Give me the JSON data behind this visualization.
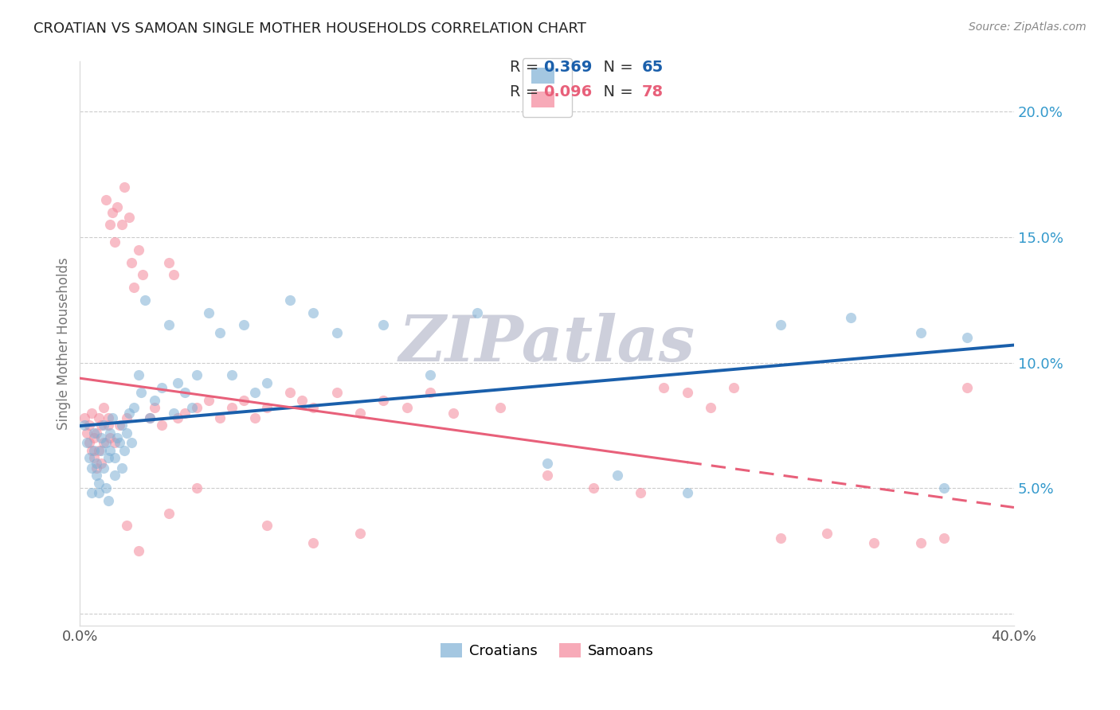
{
  "title": "CROATIAN VS SAMOAN SINGLE MOTHER HOUSEHOLDS CORRELATION CHART",
  "source": "Source: ZipAtlas.com",
  "ylabel": "Single Mother Households",
  "xlim": [
    0.0,
    0.4
  ],
  "ylim": [
    -0.005,
    0.22
  ],
  "croatian_R": 0.369,
  "croatian_N": 65,
  "samoan_R": 0.096,
  "samoan_N": 78,
  "blue_color": "#7EB0D5",
  "pink_color": "#F4879A",
  "blue_line_color": "#1A5FAB",
  "pink_line_color": "#E8607A",
  "watermark": "ZIPatlas",
  "watermark_color": "#C8CAD8",
  "croatians_x": [
    0.002,
    0.003,
    0.004,
    0.005,
    0.005,
    0.006,
    0.006,
    0.007,
    0.007,
    0.008,
    0.008,
    0.009,
    0.009,
    0.01,
    0.01,
    0.011,
    0.011,
    0.012,
    0.012,
    0.013,
    0.013,
    0.014,
    0.015,
    0.015,
    0.016,
    0.017,
    0.018,
    0.018,
    0.019,
    0.02,
    0.021,
    0.022,
    0.023,
    0.025,
    0.026,
    0.028,
    0.03,
    0.032,
    0.035,
    0.038,
    0.04,
    0.042,
    0.045,
    0.048,
    0.05,
    0.055,
    0.06,
    0.065,
    0.07,
    0.075,
    0.08,
    0.09,
    0.1,
    0.11,
    0.13,
    0.15,
    0.17,
    0.2,
    0.23,
    0.26,
    0.3,
    0.33,
    0.36,
    0.37,
    0.38
  ],
  "croatians_y": [
    0.075,
    0.068,
    0.062,
    0.058,
    0.048,
    0.065,
    0.072,
    0.055,
    0.06,
    0.048,
    0.052,
    0.07,
    0.065,
    0.058,
    0.075,
    0.05,
    0.068,
    0.062,
    0.045,
    0.072,
    0.065,
    0.078,
    0.062,
    0.055,
    0.07,
    0.068,
    0.075,
    0.058,
    0.065,
    0.072,
    0.08,
    0.068,
    0.082,
    0.095,
    0.088,
    0.125,
    0.078,
    0.085,
    0.09,
    0.115,
    0.08,
    0.092,
    0.088,
    0.082,
    0.095,
    0.12,
    0.112,
    0.095,
    0.115,
    0.088,
    0.092,
    0.125,
    0.12,
    0.112,
    0.115,
    0.095,
    0.12,
    0.06,
    0.055,
    0.048,
    0.115,
    0.118,
    0.112,
    0.05,
    0.11
  ],
  "samoans_x": [
    0.002,
    0.003,
    0.004,
    0.004,
    0.005,
    0.005,
    0.006,
    0.006,
    0.007,
    0.007,
    0.008,
    0.008,
    0.009,
    0.009,
    0.01,
    0.01,
    0.011,
    0.012,
    0.012,
    0.013,
    0.013,
    0.014,
    0.015,
    0.015,
    0.016,
    0.017,
    0.018,
    0.019,
    0.02,
    0.021,
    0.022,
    0.023,
    0.025,
    0.027,
    0.03,
    0.032,
    0.035,
    0.038,
    0.04,
    0.042,
    0.045,
    0.05,
    0.055,
    0.06,
    0.065,
    0.07,
    0.075,
    0.08,
    0.09,
    0.095,
    0.1,
    0.11,
    0.12,
    0.13,
    0.14,
    0.15,
    0.16,
    0.18,
    0.2,
    0.22,
    0.24,
    0.25,
    0.26,
    0.27,
    0.28,
    0.3,
    0.32,
    0.34,
    0.36,
    0.37,
    0.38,
    0.02,
    0.025,
    0.038,
    0.05,
    0.08,
    0.1,
    0.12
  ],
  "samoans_y": [
    0.078,
    0.072,
    0.068,
    0.075,
    0.065,
    0.08,
    0.062,
    0.07,
    0.058,
    0.072,
    0.065,
    0.078,
    0.06,
    0.075,
    0.068,
    0.082,
    0.165,
    0.078,
    0.075,
    0.155,
    0.07,
    0.16,
    0.068,
    0.148,
    0.162,
    0.075,
    0.155,
    0.17,
    0.078,
    0.158,
    0.14,
    0.13,
    0.145,
    0.135,
    0.078,
    0.082,
    0.075,
    0.14,
    0.135,
    0.078,
    0.08,
    0.082,
    0.085,
    0.078,
    0.082,
    0.085,
    0.078,
    0.082,
    0.088,
    0.085,
    0.082,
    0.088,
    0.08,
    0.085,
    0.082,
    0.088,
    0.08,
    0.082,
    0.055,
    0.05,
    0.048,
    0.09,
    0.088,
    0.082,
    0.09,
    0.03,
    0.032,
    0.028,
    0.028,
    0.03,
    0.09,
    0.035,
    0.025,
    0.04,
    0.05,
    0.035,
    0.028,
    0.032
  ]
}
